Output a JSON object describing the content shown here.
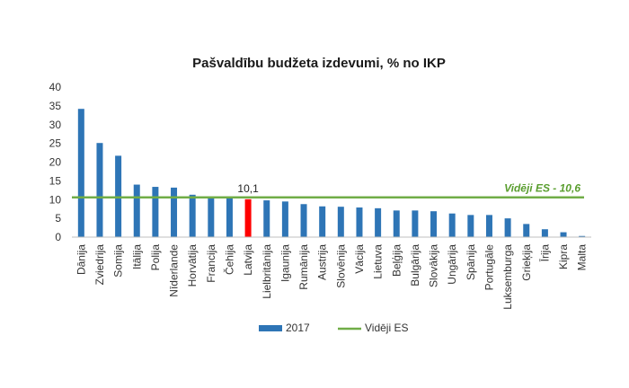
{
  "colors": {
    "bar": "#2e75b6",
    "highlight": "#ff0000",
    "average_line": "#70ad47",
    "grid": "#d9d9d9",
    "axis": "#bfbfbf"
  },
  "chart_data": {
    "type": "bar",
    "title": "Pašvaldību budžeta izdevumi, % no IKP",
    "xlabel": "",
    "ylabel": "",
    "ylim": [
      0,
      40
    ],
    "yticks": [
      0,
      5,
      10,
      15,
      20,
      25,
      30,
      35,
      40
    ],
    "grid": false,
    "legend_position": "bottom",
    "categories": [
      "Dānija",
      "Zviedrija",
      "Somija",
      "Itālija",
      "Polija",
      "Nīderlande",
      "Horvātija",
      "Francija",
      "Čehija",
      "Latvija",
      "Lielbritānija",
      "Igaunija",
      "Rumānija",
      "Austrija",
      "Slovēnija",
      "Vācija",
      "Lietuva",
      "Beļģija",
      "Bulgārija",
      "Slovākija",
      "Ungārija",
      "Spānija",
      "Portugāle",
      "Luksemburga",
      "Grieķija",
      "Īrija",
      "Kipra",
      "Malta"
    ],
    "series": [
      {
        "name": "2017",
        "values": [
          34.2,
          25.1,
          21.7,
          14.0,
          13.4,
          13.2,
          11.3,
          10.6,
          10.5,
          10.1,
          9.8,
          9.5,
          8.8,
          8.2,
          8.1,
          7.9,
          7.7,
          7.1,
          7.1,
          6.9,
          6.3,
          5.9,
          5.9,
          5.0,
          3.5,
          2.1,
          1.3,
          0.3
        ],
        "highlight_index": 9,
        "highlight_label": "10,1"
      }
    ],
    "average": {
      "name": "Vidēji ES",
      "value": 10.6,
      "annotation": "Vidēji ES - 10,6"
    }
  }
}
